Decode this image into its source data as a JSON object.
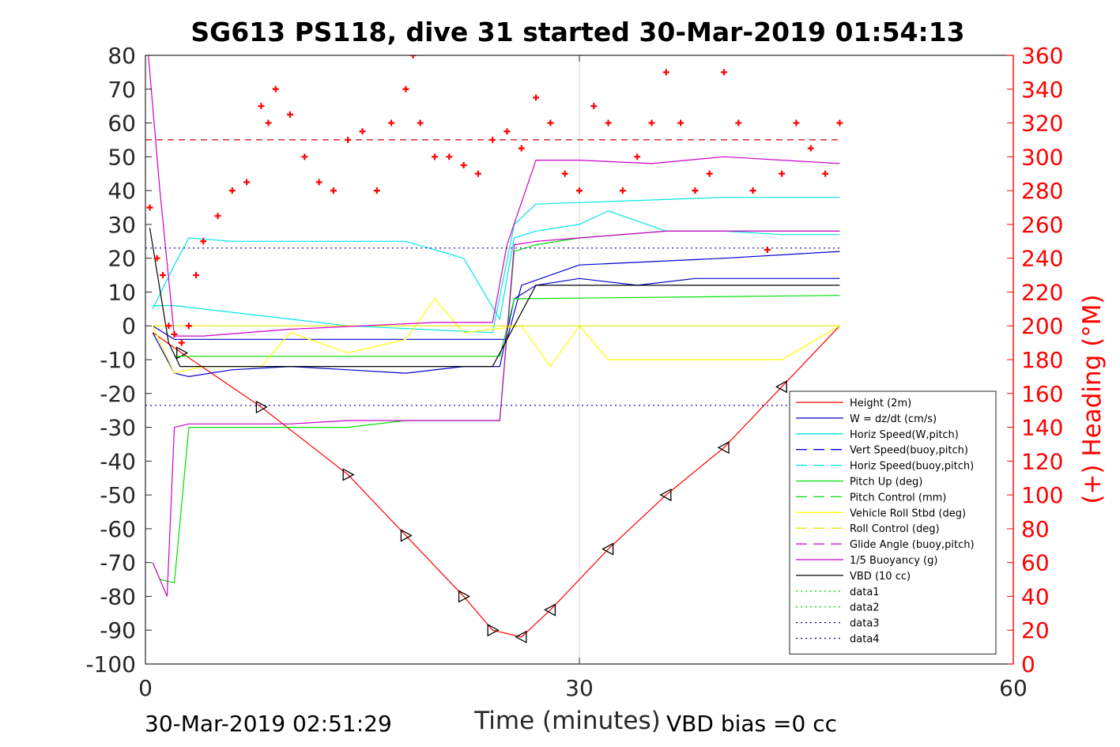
{
  "chart_data": {
    "type": "line",
    "title": "SG613 PS118, dive 31 started 30-Mar-2019 01:54:13",
    "xlabel": "Time (minutes)",
    "ylabel_right": "(+) Heading (°M)",
    "xlim": [
      0,
      60
    ],
    "ylim": [
      -100,
      80
    ],
    "ylim_right": [
      0,
      360
    ],
    "x_ticks": [
      "0",
      "30",
      "60"
    ],
    "y_ticks": [
      "80",
      "70",
      "60",
      "50",
      "40",
      "30",
      "20",
      "10",
      "0",
      "-10",
      "-20",
      "-30",
      "-40",
      "-50",
      "-60",
      "-70",
      "-80",
      "-90",
      "-100"
    ],
    "y_ticks_right": [
      "360",
      "340",
      "320",
      "300",
      "280",
      "260",
      "240",
      "220",
      "200",
      "180",
      "160",
      "140",
      "120",
      "100",
      "80",
      "60",
      "40",
      "20",
      "0"
    ],
    "grid": "x-only at 30",
    "legend_position": "bottom-right",
    "footer_left": "30-Mar-2019 02:51:29",
    "footer_right": "VBD bias =0 cc",
    "legend": [
      {
        "name": "Height (2m)",
        "color": "#ff0000",
        "dash": "solid"
      },
      {
        "name": "W = dz/dt (cm/s)",
        "color": "#0000cc",
        "dash": "solid"
      },
      {
        "name": "Horiz Speed(W,pitch)",
        "color": "#00e5e5",
        "dash": "solid"
      },
      {
        "name": "Vert Speed(buoy,pitch)",
        "color": "#0000cc",
        "dash": "long"
      },
      {
        "name": "Horiz Speed(buoy,pitch)",
        "color": "#00e5e5",
        "dash": "long"
      },
      {
        "name": "Pitch Up (deg)",
        "color": "#00e000",
        "dash": "solid"
      },
      {
        "name": "Pitch Control (mm)",
        "color": "#00e000",
        "dash": "long"
      },
      {
        "name": "Vehicle Roll Stbd (deg)",
        "color": "#ffff00",
        "dash": "solid"
      },
      {
        "name": "Roll Control (deg)",
        "color": "#e5e500",
        "dash": "long"
      },
      {
        "name": "Glide Angle (buoy,pitch)",
        "color": "#cc00cc",
        "dash": "long"
      },
      {
        "name": "1/5 Buoyancy (g)",
        "color": "#cc00cc",
        "dash": "solid"
      },
      {
        "name": "VBD (10 cc)",
        "color": "#000000",
        "dash": "solid"
      },
      {
        "name": "data1",
        "color": "#00e000",
        "dash": "dot"
      },
      {
        "name": "data2",
        "color": "#00e000",
        "dash": "dot"
      },
      {
        "name": "data3",
        "color": "#000099",
        "dash": "dot"
      },
      {
        "name": "data4",
        "color": "#000099",
        "dash": "dot"
      }
    ],
    "series": [
      {
        "name": "Height (2m)",
        "axis": "left",
        "color": "#ff0000",
        "x": [
          0.5,
          2.5,
          8,
          14,
          18,
          22,
          24,
          26,
          28,
          32,
          36,
          40,
          44,
          48
        ],
        "y": [
          -2,
          -8,
          -24,
          -44,
          -62,
          -80,
          -90,
          -92,
          -84,
          -66,
          -50,
          -36,
          -18,
          0
        ]
      },
      {
        "name": "W = dz/dt (cm/s)",
        "axis": "left",
        "color": "#0000cc",
        "x": [
          0.5,
          2,
          3,
          6,
          10,
          14,
          18,
          22,
          24.5,
          25.5,
          27,
          30,
          34,
          38,
          42,
          46,
          48
        ],
        "y": [
          -2,
          -14,
          -15,
          -13,
          -12,
          -13,
          -14,
          -12,
          -12,
          8,
          12,
          14,
          12,
          14,
          14,
          14,
          14
        ]
      },
      {
        "name": "Horiz Speed(W,pitch)",
        "axis": "left",
        "color": "#00e5e5",
        "x": [
          0.5,
          2,
          3,
          6,
          10,
          14,
          18,
          22,
          24.5,
          25.5,
          27,
          30,
          32,
          36,
          40,
          44,
          48
        ],
        "y": [
          5,
          18,
          26,
          25,
          25,
          25,
          25,
          20,
          2,
          26,
          28,
          30,
          34,
          28,
          28,
          27,
          27
        ]
      },
      {
        "name": "Vert Speed(buoy,pitch)",
        "axis": "left",
        "color": "#0000cc",
        "x": [
          0.5,
          2,
          25,
          26,
          30,
          40,
          48
        ],
        "y": [
          0,
          -4,
          -4,
          12,
          18,
          20,
          22
        ]
      },
      {
        "name": "Horiz Speed(buoy,pitch)",
        "axis": "left",
        "color": "#00e5e5",
        "x": [
          0.5,
          2,
          14,
          24,
          25.5,
          27,
          40,
          48
        ],
        "y": [
          6,
          6,
          0,
          -2,
          30,
          36,
          38,
          38
        ]
      },
      {
        "name": "Pitch Up (deg)",
        "axis": "left",
        "color": "#00e000",
        "x": [
          0.5,
          1,
          2,
          3,
          6,
          10,
          14,
          18,
          22,
          24.5,
          25.5,
          27,
          30,
          36,
          40,
          48
        ],
        "y": [
          -70,
          -75,
          -76,
          -30,
          -30,
          -30,
          -30,
          -28,
          -28,
          -28,
          22,
          24,
          26,
          28,
          28,
          28
        ]
      },
      {
        "name": "Pitch Control (mm)",
        "axis": "left",
        "color": "#00e000",
        "x": [
          2,
          24.5,
          25.5,
          48
        ],
        "y": [
          -9,
          -9,
          8,
          9
        ]
      },
      {
        "name": "Vehicle Roll Stbd (deg)",
        "axis": "left",
        "color": "#ffff00",
        "x": [
          0.5,
          2,
          4,
          8,
          10,
          14,
          18,
          20,
          22,
          26,
          28,
          30,
          32,
          36,
          40,
          44,
          48
        ],
        "y": [
          0,
          -14,
          -12,
          -12,
          -2,
          -8,
          -4,
          8,
          -2,
          0,
          -12,
          0,
          -10,
          -10,
          -10,
          -10,
          0
        ]
      },
      {
        "name": "Roll Control (deg)",
        "axis": "left",
        "color": "#e5e500",
        "x": [
          0.5,
          2,
          10,
          18,
          26,
          48
        ],
        "y": [
          0,
          0,
          0,
          0,
          0,
          0
        ]
      },
      {
        "name": "Glide Angle (buoy,pitch)",
        "axis": "left",
        "color": "#cc00cc",
        "x": [
          0.5,
          1.5,
          2,
          3,
          6,
          10,
          14,
          18,
          22,
          24.5,
          25.5,
          27,
          30,
          36,
          40,
          48
        ],
        "y": [
          -70,
          -80,
          -30,
          -29,
          -29,
          -29,
          -28,
          -28,
          -28,
          -28,
          24,
          25,
          26,
          28,
          28,
          28
        ]
      },
      {
        "name": "1/5 Buoyancy (g)",
        "axis": "left",
        "color": "#cc00cc",
        "x": [
          0.2,
          1,
          2,
          4,
          10,
          20,
          24,
          25,
          27,
          30,
          35,
          40,
          48
        ],
        "y": [
          80,
          40,
          -3,
          -3,
          -1,
          1,
          1,
          24,
          49,
          49,
          48,
          50,
          48
        ]
      },
      {
        "name": "VBD (10 cc)",
        "axis": "left",
        "color": "#000000",
        "x": [
          0.3,
          1.6,
          2.4,
          24,
          25.5,
          27,
          48
        ],
        "y": [
          29,
          -5,
          -12,
          -12,
          0,
          12,
          12
        ]
      },
      {
        "name": "data3",
        "axis": "left",
        "color": "#000099",
        "dash": "dot",
        "x": [
          0,
          48
        ],
        "y": [
          23,
          23
        ]
      },
      {
        "name": "data4",
        "axis": "left",
        "color": "#000099",
        "dash": "dot",
        "x": [
          0,
          48
        ],
        "y": [
          -23.5,
          -23.5
        ]
      },
      {
        "name": "heading reference",
        "axis": "right",
        "color": "#cc0000",
        "dash": "dash",
        "x": [
          0,
          48
        ],
        "y": [
          310,
          310
        ]
      },
      {
        "name": "(+) Heading (°M)",
        "axis": "right",
        "color": "#ff0000",
        "marker": "+",
        "x": [
          0.3,
          0.8,
          1.2,
          1.6,
          2,
          2.5,
          3,
          3.5,
          4,
          5,
          6,
          7,
          8,
          8.5,
          9,
          10,
          11,
          12,
          13,
          14,
          15,
          16,
          17,
          18,
          18.5,
          19,
          20,
          21,
          22,
          23,
          24,
          25,
          26,
          27,
          28,
          29,
          30,
          31,
          32,
          33,
          34,
          35,
          36,
          37,
          38,
          39,
          40,
          41,
          42,
          43,
          44,
          45,
          46,
          47,
          48
        ],
        "y": [
          270,
          240,
          230,
          200,
          195,
          190,
          200,
          230,
          250,
          265,
          280,
          285,
          330,
          320,
          340,
          325,
          300,
          285,
          280,
          310,
          315,
          280,
          320,
          340,
          360,
          320,
          300,
          300,
          295,
          290,
          310,
          315,
          305,
          335,
          320,
          290,
          280,
          330,
          320,
          280,
          300,
          320,
          350,
          320,
          280,
          290,
          350,
          320,
          280,
          245,
          290,
          320,
          305,
          290,
          320
        ]
      }
    ]
  }
}
